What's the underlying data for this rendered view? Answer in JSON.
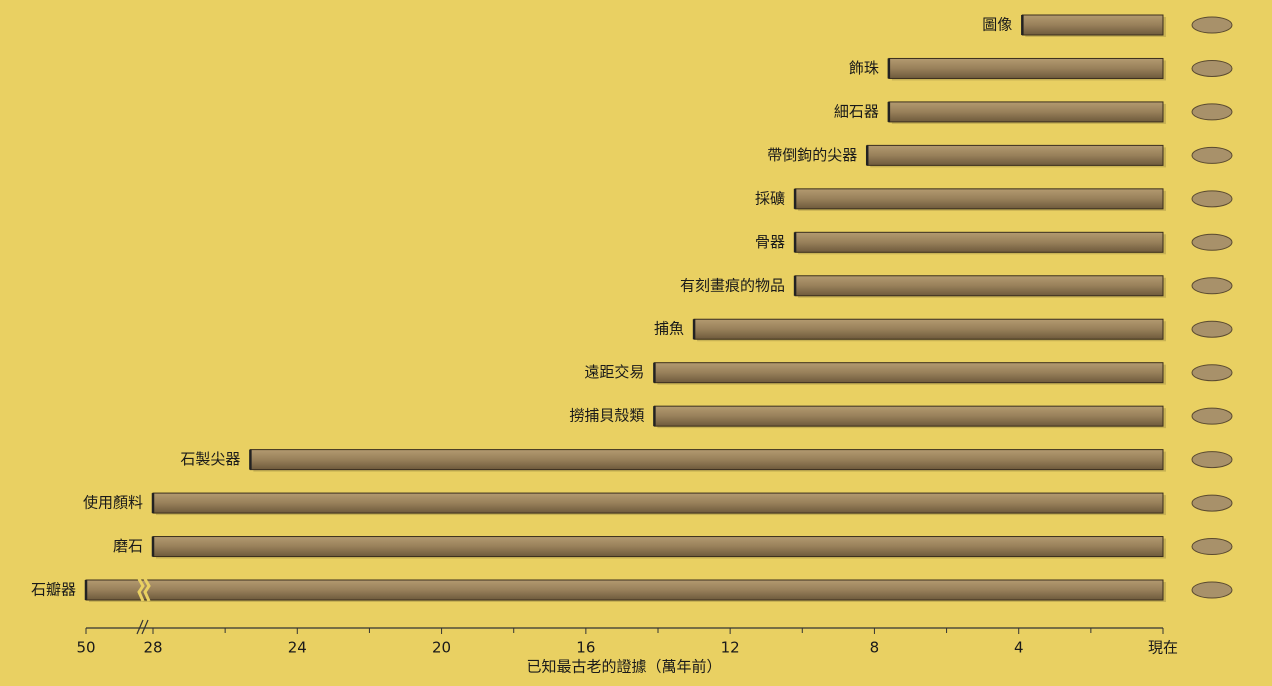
{
  "chart_data": {
    "type": "bar",
    "orientation": "horizontal",
    "xlabel": "已知最古老的證據（萬年前）",
    "categories": [
      "圖像",
      "飾珠",
      "細石器",
      "帶倒鉤的尖器",
      "採礦",
      "骨器",
      "有刻畫痕的物品",
      "捕魚",
      "遠距交易",
      "撈捕貝殼類",
      "石製尖器",
      "使用顏料",
      "磨石",
      "石瓣器"
    ],
    "values": [
      3.9,
      7.6,
      7.6,
      8.2,
      10.2,
      10.2,
      10.2,
      13,
      14.1,
      14.1,
      25.3,
      28,
      28,
      50
    ],
    "color": "#98805a",
    "xlim": [
      50,
      0
    ],
    "xbreak": [
      28,
      50
    ],
    "xticks": [
      50,
      28,
      24,
      20,
      16,
      12,
      8,
      4,
      {
        "value": 0,
        "label": "現在"
      }
    ],
    "minor_xticks": [
      26,
      22,
      18,
      14,
      10,
      6,
      2
    ]
  }
}
